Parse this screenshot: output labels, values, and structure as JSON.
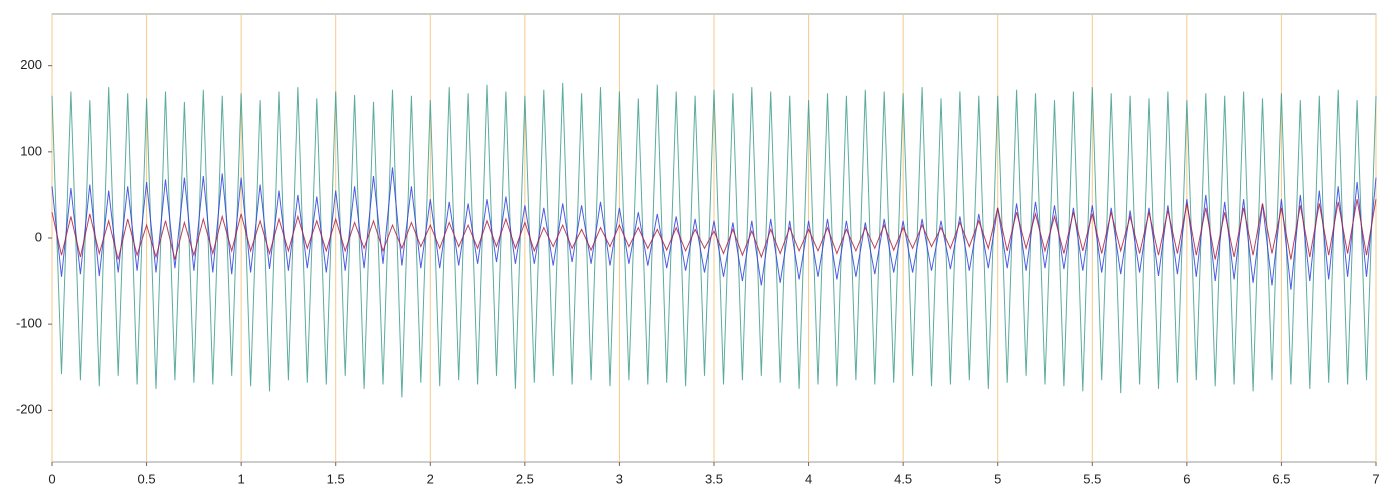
{
  "chart_data": {
    "type": "line",
    "xlim": [
      0,
      7
    ],
    "ylim": [
      -260,
      260
    ],
    "xticks": [
      0,
      0.5,
      1,
      1.5,
      2,
      2.5,
      3,
      3.5,
      4,
      4.5,
      5,
      5.5,
      6,
      6.5,
      7
    ],
    "yticks": [
      -200,
      -100,
      0,
      100,
      200
    ],
    "grid": true,
    "grid_color": "#f7c98a",
    "x": [
      0,
      0.05,
      0.1,
      0.15,
      0.2,
      0.25,
      0.3,
      0.35,
      0.4,
      0.45,
      0.5,
      0.55,
      0.6,
      0.65,
      0.7,
      0.75,
      0.8,
      0.85,
      0.9,
      0.95,
      1,
      1.05,
      1.1,
      1.15,
      1.2,
      1.25,
      1.3,
      1.35,
      1.4,
      1.45,
      1.5,
      1.55,
      1.6,
      1.65,
      1.7,
      1.75,
      1.8,
      1.85,
      1.9,
      1.95,
      2,
      2.05,
      2.1,
      2.15,
      2.2,
      2.25,
      2.3,
      2.35,
      2.4,
      2.45,
      2.5,
      2.55,
      2.6,
      2.65,
      2.7,
      2.75,
      2.8,
      2.85,
      2.9,
      2.95,
      3,
      3.05,
      3.1,
      3.15,
      3.2,
      3.25,
      3.3,
      3.35,
      3.4,
      3.45,
      3.5,
      3.55,
      3.6,
      3.65,
      3.7,
      3.75,
      3.8,
      3.85,
      3.9,
      3.95,
      4,
      4.05,
      4.1,
      4.15,
      4.2,
      4.25,
      4.3,
      4.35,
      4.4,
      4.45,
      4.5,
      4.55,
      4.6,
      4.65,
      4.7,
      4.75,
      4.8,
      4.85,
      4.9,
      4.95,
      5,
      5.05,
      5.1,
      5.15,
      5.2,
      5.25,
      5.3,
      5.35,
      5.4,
      5.45,
      5.5,
      5.55,
      5.6,
      5.65,
      5.7,
      5.75,
      5.8,
      5.85,
      5.9,
      5.95,
      6,
      6.05,
      6.1,
      6.15,
      6.2,
      6.25,
      6.3,
      6.35,
      6.4,
      6.45,
      6.5,
      6.55,
      6.6,
      6.65,
      6.7,
      6.75,
      6.8,
      6.85,
      6.9,
      6.95,
      7
    ],
    "series": [
      {
        "color": "#3f9e8c",
        "values": [
          165,
          -158,
          170,
          -165,
          160,
          -172,
          175,
          -160,
          168,
          -170,
          162,
          -175,
          170,
          -165,
          158,
          -168,
          172,
          -170,
          165,
          -160,
          168,
          -172,
          160,
          -178,
          170,
          -165,
          175,
          -168,
          162,
          -170,
          170,
          -160,
          166,
          -175,
          158,
          -170,
          172,
          -185,
          165,
          -168,
          160,
          -172,
          175,
          -165,
          168,
          -170,
          178,
          -160,
          170,
          -175,
          165,
          -168,
          172,
          -160,
          180,
          -170,
          168,
          -165,
          175,
          -172,
          170,
          -165,
          162,
          -170,
          178,
          -168,
          170,
          -172,
          165,
          -160,
          172,
          -170,
          168,
          -165,
          175,
          -160,
          170,
          -168,
          165,
          -175,
          160,
          -170,
          168,
          -172,
          165,
          -165,
          172,
          -170,
          170,
          -168,
          168,
          -160,
          175,
          -172,
          162,
          -170,
          170,
          -165,
          165,
          -175,
          165,
          -168,
          172,
          -160,
          168,
          -170,
          160,
          -172,
          170,
          -178,
          175,
          -165,
          168,
          -180,
          165,
          -170,
          162,
          -175,
          170,
          -168,
          160,
          -165,
          168,
          -172,
          165,
          -170,
          170,
          -178,
          162,
          -165,
          168,
          -170,
          160,
          -175,
          165,
          -168,
          172,
          -170,
          160,
          -165,
          165
        ]
      },
      {
        "color": "#2b3fe0",
        "values": [
          60,
          -45,
          58,
          -42,
          62,
          -44,
          55,
          -40,
          60,
          -38,
          65,
          -40,
          68,
          -35,
          70,
          -38,
          72,
          -40,
          75,
          -42,
          70,
          -40,
          62,
          -36,
          55,
          -38,
          50,
          -35,
          48,
          -40,
          55,
          -38,
          60,
          -35,
          72,
          -30,
          82,
          -32,
          60,
          -35,
          45,
          -35,
          42,
          -32,
          40,
          -30,
          45,
          -28,
          48,
          -30,
          38,
          -30,
          35,
          -32,
          40,
          -28,
          38,
          -30,
          42,
          -32,
          35,
          -30,
          30,
          -32,
          28,
          -35,
          25,
          -38,
          22,
          -40,
          20,
          -45,
          18,
          -50,
          20,
          -55,
          22,
          -52,
          20,
          -48,
          20,
          -45,
          22,
          -48,
          20,
          -45,
          18,
          -42,
          22,
          -40,
          20,
          -40,
          22,
          -38,
          20,
          -36,
          25,
          -38,
          28,
          -35,
          35,
          -35,
          40,
          -38,
          42,
          -35,
          38,
          -36,
          35,
          -38,
          38,
          -40,
          35,
          -42,
          32,
          -40,
          35,
          -44,
          38,
          -42,
          45,
          -45,
          50,
          -50,
          42,
          -48,
          45,
          -52,
          40,
          -55,
          45,
          -60,
          50,
          -50,
          55,
          -48,
          60,
          -45,
          65,
          -45,
          70
        ]
      },
      {
        "color": "#b0203c",
        "values": [
          30,
          -20,
          25,
          -22,
          28,
          -18,
          20,
          -25,
          22,
          -20,
          15,
          -22,
          20,
          -25,
          18,
          -20,
          22,
          -18,
          25,
          -15,
          28,
          -15,
          20,
          -18,
          22,
          -15,
          25,
          -12,
          20,
          -15,
          22,
          -15,
          18,
          -12,
          20,
          -15,
          15,
          -12,
          18,
          -10,
          15,
          -12,
          18,
          -10,
          15,
          -12,
          20,
          -10,
          22,
          -12,
          18,
          -15,
          12,
          -10,
          15,
          -12,
          10,
          -14,
          12,
          -10,
          15,
          -10,
          12,
          -12,
          10,
          -14,
          12,
          -15,
          10,
          -12,
          8,
          -18,
          10,
          -20,
          8,
          -22,
          10,
          -18,
          12,
          -15,
          10,
          -15,
          12,
          -18,
          10,
          -15,
          12,
          -12,
          15,
          -14,
          12,
          -12,
          15,
          -10,
          12,
          -12,
          18,
          -10,
          20,
          -12,
          35,
          -15,
          30,
          -12,
          28,
          -15,
          25,
          -18,
          30,
          -15,
          28,
          -18,
          30,
          -15,
          25,
          -18,
          30,
          -20,
          32,
          -18,
          40,
          -20,
          35,
          -25,
          30,
          -22,
          35,
          -20,
          40,
          -18,
          35,
          -25,
          38,
          -22,
          40,
          -20,
          42,
          -18,
          45,
          -20,
          45
        ]
      }
    ]
  }
}
